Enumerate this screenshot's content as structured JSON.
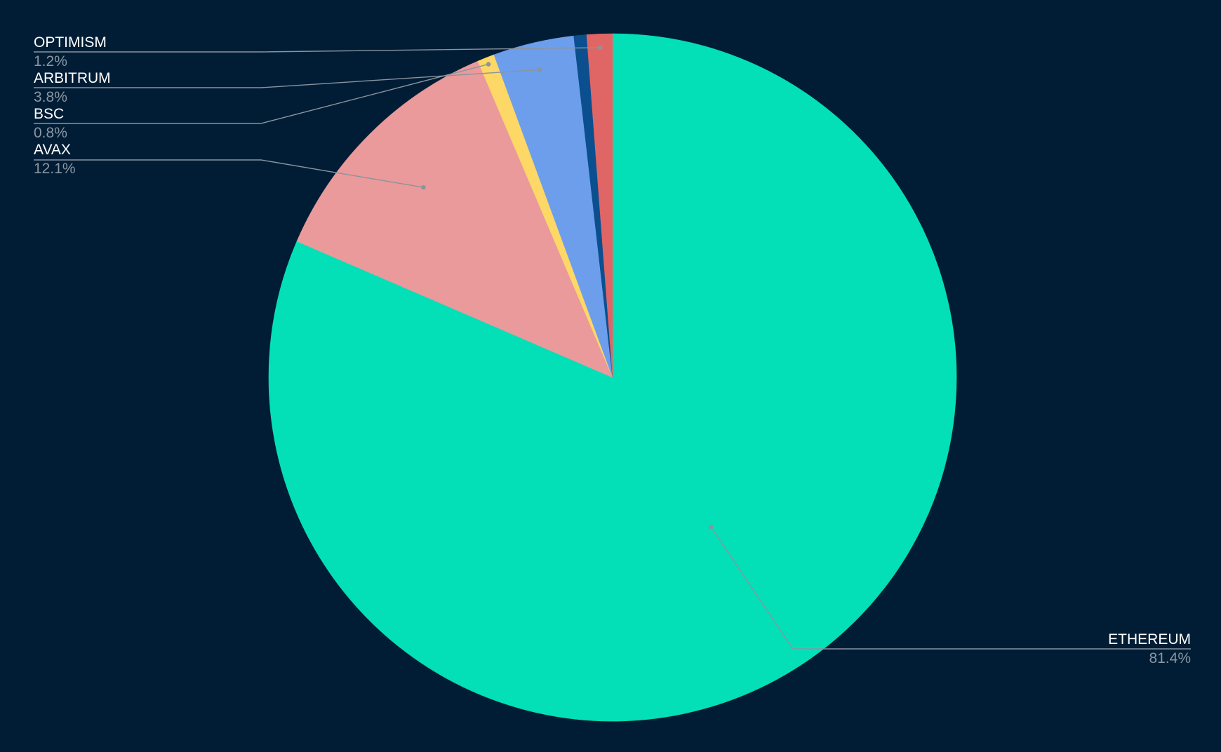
{
  "chart_data": {
    "type": "pie",
    "title": "",
    "start_angle_deg": 0,
    "direction": "clockwise",
    "slices": [
      {
        "name": "ETHEREUM",
        "value": 81.4,
        "label": "81.4%",
        "color": "#03e0b8"
      },
      {
        "name": "AVAX",
        "value": 12.1,
        "label": "12.1%",
        "color": "#ea9a9b"
      },
      {
        "name": "BSC",
        "value": 0.8,
        "label": "0.8%",
        "color": "#fdd866"
      },
      {
        "name": "ARBITRUM",
        "value": 3.8,
        "label": "3.8%",
        "color": "#6d9eeb"
      },
      {
        "name": "",
        "value": 0.6,
        "label": "",
        "color": "#0b4f8f"
      },
      {
        "name": "OPTIMISM",
        "value": 1.2,
        "label": "1.2%",
        "color": "#e06666"
      }
    ],
    "background": "#001d35",
    "legend": "none"
  }
}
